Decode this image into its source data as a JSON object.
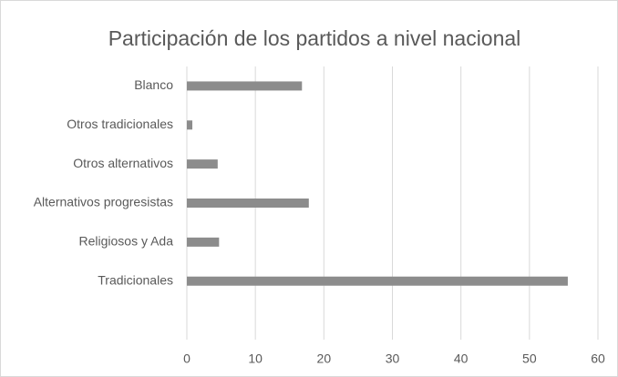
{
  "chart_data": {
    "type": "hbar",
    "title": "Participación de los partidos a nivel nacional",
    "categories": [
      "Blanco",
      "Otros tradicionales",
      "Otros alternativos",
      "Alternativos progresistas",
      "Religiosos y Ada",
      "Tradicionales",
      null
    ],
    "values": [
      16.8,
      0.8,
      4.5,
      17.8,
      4.7,
      55.6,
      null
    ],
    "color": "#8c8c8c",
    "xlim": [
      0,
      60
    ],
    "xticks": [
      0,
      10,
      20,
      30,
      40,
      50,
      60
    ],
    "grid": true
  }
}
